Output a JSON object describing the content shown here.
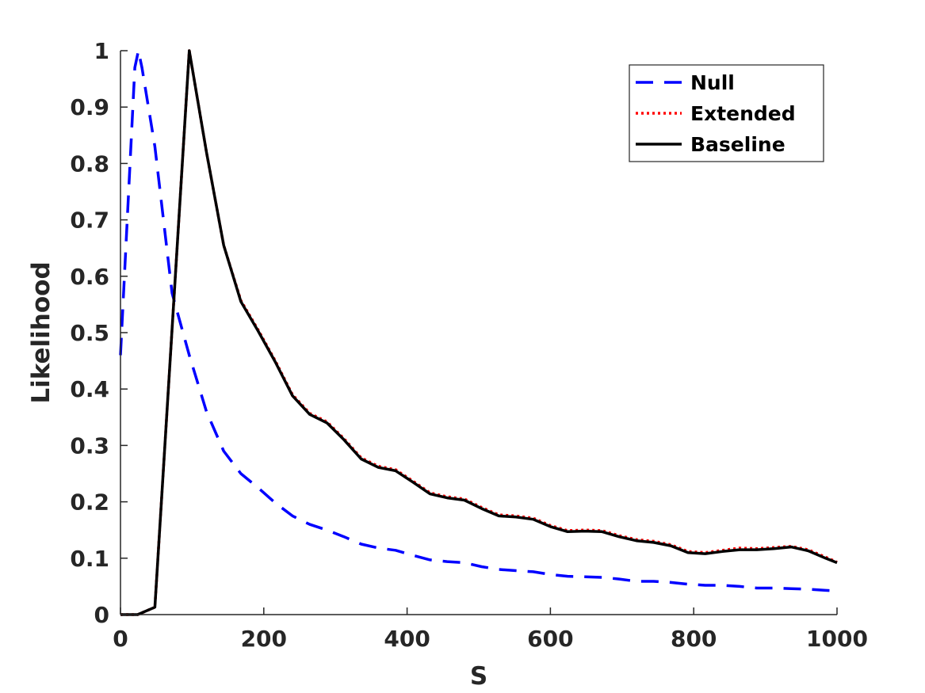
{
  "chart_data": {
    "type": "line",
    "title": "",
    "xlabel": "S",
    "ylabel": "Likelihood",
    "xlim": [
      0,
      1000
    ],
    "ylim": [
      0,
      1
    ],
    "xticks": [
      0,
      200,
      400,
      600,
      800,
      1000
    ],
    "yticks": [
      0,
      0.1,
      0.2,
      0.3,
      0.4,
      0.5,
      0.6,
      0.7,
      0.8,
      0.9,
      1
    ],
    "grid": false,
    "legend_position": "top-right",
    "series": [
      {
        "name": "Null",
        "color": "#0000FF",
        "style": "dashed",
        "x": [
          0,
          20,
          25,
          30,
          48,
          72,
          96,
          120,
          144,
          168,
          192,
          216,
          240,
          264,
          288,
          312,
          336,
          360,
          384,
          408,
          432,
          456,
          480,
          504,
          528,
          552,
          576,
          600,
          624,
          648,
          672,
          696,
          720,
          744,
          768,
          792,
          816,
          840,
          864,
          888,
          912,
          936,
          960,
          984,
          1000
        ],
        "y": [
          0.46,
          0.97,
          1.0,
          0.97,
          0.83,
          0.57,
          0.46,
          0.36,
          0.29,
          0.25,
          0.225,
          0.198,
          0.175,
          0.16,
          0.15,
          0.138,
          0.125,
          0.118,
          0.114,
          0.105,
          0.097,
          0.094,
          0.092,
          0.085,
          0.08,
          0.078,
          0.076,
          0.071,
          0.068,
          0.067,
          0.066,
          0.063,
          0.059,
          0.059,
          0.057,
          0.054,
          0.052,
          0.052,
          0.05,
          0.047,
          0.047,
          0.046,
          0.045,
          0.043,
          0.042
        ]
      },
      {
        "name": "Extended",
        "color": "#FF0000",
        "style": "dotted",
        "x": [
          0,
          24,
          48,
          96,
          120,
          144,
          168,
          192,
          216,
          240,
          264,
          288,
          312,
          336,
          360,
          384,
          408,
          432,
          456,
          480,
          504,
          528,
          552,
          576,
          600,
          624,
          648,
          672,
          696,
          720,
          744,
          768,
          792,
          816,
          840,
          864,
          888,
          912,
          936,
          960,
          984,
          1000
        ],
        "y": [
          0,
          0,
          0.013,
          1.0,
          0.82,
          0.655,
          0.557,
          0.505,
          0.45,
          0.39,
          0.357,
          0.342,
          0.312,
          0.278,
          0.263,
          0.257,
          0.237,
          0.216,
          0.209,
          0.205,
          0.19,
          0.177,
          0.175,
          0.171,
          0.158,
          0.149,
          0.15,
          0.149,
          0.14,
          0.133,
          0.13,
          0.124,
          0.112,
          0.11,
          0.114,
          0.118,
          0.117,
          0.119,
          0.121,
          0.115,
          0.102,
          0.093
        ]
      },
      {
        "name": "Baseline",
        "color": "#000000",
        "style": "solid",
        "x": [
          0,
          24,
          48,
          96,
          120,
          144,
          168,
          192,
          216,
          240,
          264,
          288,
          312,
          336,
          360,
          384,
          408,
          432,
          456,
          480,
          504,
          528,
          552,
          576,
          600,
          624,
          648,
          672,
          696,
          720,
          744,
          768,
          792,
          816,
          840,
          864,
          888,
          912,
          936,
          960,
          984,
          1000
        ],
        "y": [
          0,
          0,
          0.013,
          1.0,
          0.82,
          0.655,
          0.555,
          0.503,
          0.448,
          0.388,
          0.355,
          0.34,
          0.31,
          0.276,
          0.261,
          0.255,
          0.235,
          0.214,
          0.207,
          0.203,
          0.188,
          0.175,
          0.173,
          0.169,
          0.156,
          0.147,
          0.148,
          0.147,
          0.138,
          0.131,
          0.128,
          0.122,
          0.11,
          0.108,
          0.112,
          0.115,
          0.115,
          0.117,
          0.12,
          0.113,
          0.1,
          0.092
        ]
      }
    ]
  }
}
